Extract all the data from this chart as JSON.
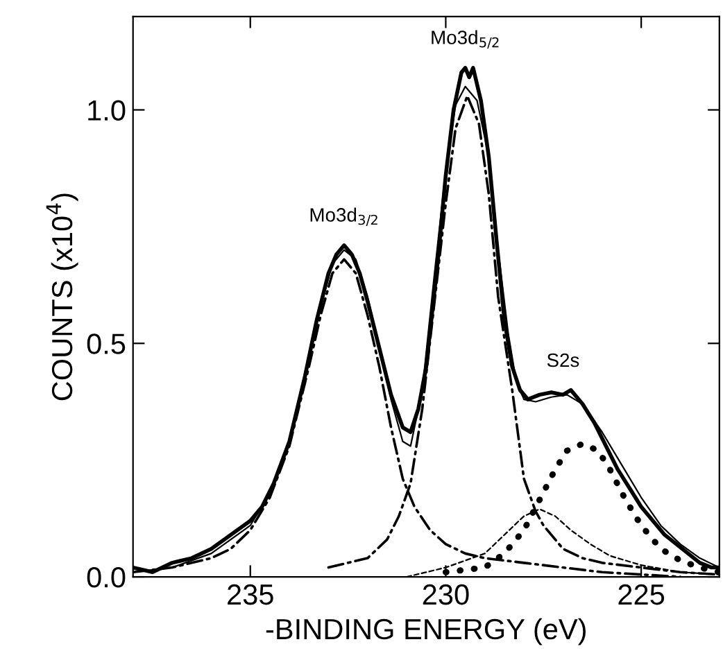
{
  "chart_data": {
    "type": "line",
    "xlabel": "-BINDING ENERGY (eV)",
    "ylabel": "COUNTS (x10$^{4}$)",
    "xlim": [
      238,
      223
    ],
    "ylim": [
      0,
      1.2
    ],
    "xticks": [
      235,
      230,
      225
    ],
    "yticks": [
      {
        "value": 0,
        "label": "0.0"
      },
      {
        "value": 0.5,
        "label": "0.5"
      },
      {
        "value": 1.0,
        "label": "1.0"
      }
    ],
    "grid": false,
    "legend": false,
    "marker": "none",
    "series": [
      {
        "color": "#000000",
        "line_style": "solid",
        "x": [
          238,
          237.5,
          237,
          236.5,
          236,
          235.5,
          235,
          234.7,
          234.4,
          234,
          233.6,
          233.3,
          233,
          232.8,
          232.6,
          232.4,
          232.2,
          232,
          231.7,
          231.4,
          231.1,
          230.9,
          230.7,
          230.5,
          230.2,
          230,
          229.8,
          229.6,
          229.5,
          229.4,
          229.3,
          229.1,
          228.9,
          228.7,
          228.5,
          228.3,
          228.1,
          227.9,
          227.6,
          227.3,
          227.0,
          226.8,
          226.5,
          226.2,
          225.9,
          225.6,
          225.3,
          225,
          224.7,
          224.4,
          224.1,
          223.8,
          223.5,
          223.2,
          223
        ],
        "values": [
          0.02,
          0.01,
          0.03,
          0.04,
          0.06,
          0.09,
          0.12,
          0.15,
          0.2,
          0.29,
          0.43,
          0.55,
          0.65,
          0.69,
          0.71,
          0.69,
          0.65,
          0.59,
          0.49,
          0.39,
          0.32,
          0.31,
          0.36,
          0.45,
          0.68,
          0.86,
          1.0,
          1.08,
          1.09,
          1.07,
          1.09,
          1.02,
          0.9,
          0.72,
          0.55,
          0.45,
          0.4,
          0.38,
          0.39,
          0.395,
          0.39,
          0.4,
          0.37,
          0.33,
          0.28,
          0.23,
          0.19,
          0.15,
          0.12,
          0.09,
          0.07,
          0.05,
          0.03,
          0.02,
          0.02
        ]
      },
      {
        "color": "#000000",
        "line_style": "solid",
        "x": [
          238,
          237,
          236,
          235,
          234.5,
          234,
          233.5,
          233.2,
          232.9,
          232.6,
          232.3,
          232,
          231.7,
          231.4,
          231.1,
          230.9,
          230.6,
          230.3,
          230,
          229.75,
          229.5,
          229.2,
          228.9,
          228.66,
          228.4,
          228.2,
          228,
          227.7,
          227.3,
          226.9,
          226.5,
          226,
          225.5,
          225,
          224.5,
          224,
          223.5,
          223
        ],
        "values": [
          0.01,
          0.02,
          0.05,
          0.11,
          0.18,
          0.29,
          0.47,
          0.58,
          0.67,
          0.7,
          0.68,
          0.6,
          0.49,
          0.38,
          0.29,
          0.28,
          0.4,
          0.64,
          0.87,
          1.01,
          1.05,
          1.02,
          0.9,
          0.7,
          0.52,
          0.42,
          0.38,
          0.375,
          0.385,
          0.39,
          0.37,
          0.31,
          0.24,
          0.17,
          0.11,
          0.07,
          0.04,
          0.02
        ]
      },
      {
        "color": "#000000",
        "line_style": "dashed",
        "x": [
          238,
          237,
          236,
          235.5,
          235,
          234.5,
          234,
          233.5,
          233.2,
          232.9,
          232.6,
          232.3,
          232,
          231.7,
          231.4,
          231.1,
          230.8,
          230.4,
          230,
          229.5,
          229,
          228,
          227,
          226,
          225,
          224
        ],
        "values": [
          0.01,
          0.02,
          0.04,
          0.06,
          0.1,
          0.17,
          0.28,
          0.45,
          0.56,
          0.65,
          0.68,
          0.65,
          0.56,
          0.45,
          0.32,
          0.21,
          0.15,
          0.1,
          0.07,
          0.05,
          0.04,
          0.03,
          0.02,
          0.01,
          0.005,
          0.0
        ]
      },
      {
        "color": "#000000",
        "line_style": "dashed",
        "x": [
          233,
          232.5,
          232,
          231.5,
          231.2,
          230.9,
          230.6,
          230.3,
          230,
          229.75,
          229.45,
          229.15,
          228.9,
          228.66,
          228.3,
          228,
          227.7,
          227.5,
          227,
          226.5,
          226,
          225,
          224,
          223
        ],
        "values": [
          0.02,
          0.03,
          0.04,
          0.08,
          0.13,
          0.2,
          0.36,
          0.58,
          0.8,
          0.96,
          1.03,
          0.97,
          0.82,
          0.6,
          0.4,
          0.21,
          0.14,
          0.11,
          0.06,
          0.04,
          0.03,
          0.02,
          0.01,
          0.005
        ]
      },
      {
        "color": "#000000",
        "line_style": "dotted",
        "x": [
          230,
          229,
          228.5,
          228,
          227.6,
          227.2,
          226.9,
          226.5,
          226.1,
          225.8,
          225.4,
          225,
          224.5,
          224,
          223.5,
          223
        ],
        "values": [
          0.01,
          0.02,
          0.05,
          0.1,
          0.165,
          0.23,
          0.27,
          0.285,
          0.27,
          0.23,
          0.165,
          0.11,
          0.06,
          0.035,
          0.02,
          0.01
        ]
      },
      {
        "color": "#000000",
        "line_style": "dashed",
        "x": [
          231,
          230,
          229,
          228.5,
          228,
          227.6,
          227.2,
          226.8,
          226.3,
          225.8,
          225,
          224,
          223
        ],
        "values": [
          0.0,
          0.02,
          0.05,
          0.09,
          0.13,
          0.145,
          0.13,
          0.1,
          0.07,
          0.045,
          0.025,
          0.01,
          0.005
        ]
      }
    ],
    "annotations": [
      {
        "text": "Mo3d$_{3/2}$",
        "x": 232.6,
        "y": 0.71
      },
      {
        "text": "Mo3d$_{5/2}$",
        "x": 229.5,
        "y": 1.09
      },
      {
        "text": "S2s",
        "x": 227.0,
        "y": 0.4
      }
    ]
  }
}
